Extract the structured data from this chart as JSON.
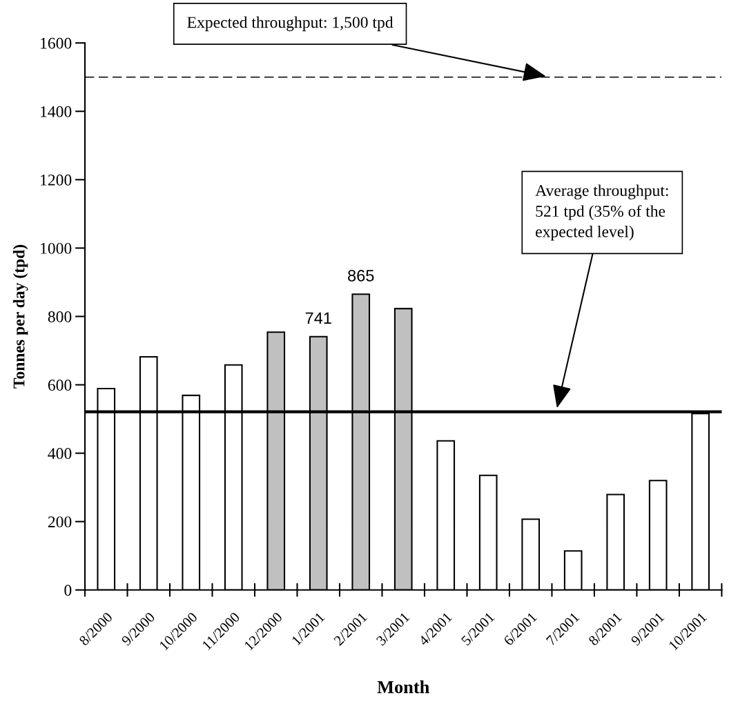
{
  "chart_data": {
    "type": "bar",
    "xlabel": "Month",
    "ylabel": "Tonnes per day (tpd)",
    "categories": [
      "8/2000",
      "9/2000",
      "10/2000",
      "11/2000",
      "12/2000",
      "1/2001",
      "2/2001",
      "3/2001",
      "4/2001",
      "5/2001",
      "6/2001",
      "7/2001",
      "8/2001",
      "9/2001",
      "10/2001"
    ],
    "values": [
      589,
      682,
      569,
      658,
      754,
      741,
      865,
      823,
      436,
      335,
      207,
      114,
      279,
      320,
      516
    ],
    "colors": [
      "#ffffff",
      "#ffffff",
      "#ffffff",
      "#ffffff",
      "#c0c0c0",
      "#c0c0c0",
      "#c0c0c0",
      "#c0c0c0",
      "#ffffff",
      "#ffffff",
      "#ffffff",
      "#ffffff",
      "#ffffff",
      "#ffffff",
      "#ffffff"
    ],
    "value_labels": [
      null,
      null,
      null,
      null,
      null,
      "741",
      "865",
      null,
      null,
      null,
      null,
      null,
      null,
      null,
      null
    ],
    "ylim": [
      0,
      1600
    ],
    "yticks": [
      0,
      200,
      400,
      600,
      800,
      1000,
      1200,
      1400,
      1600
    ],
    "ref_lines": [
      {
        "axis": "y",
        "value": 1500,
        "label": "Expected throughput: 1,500 tpd",
        "color": "#000000",
        "line_style": "dashed"
      },
      {
        "axis": "y",
        "value": 521,
        "label": "Average throughput:\n521 tpd (35% of the\nexpected level)",
        "color": "#000000",
        "line_style": "solid"
      }
    ],
    "grid": false
  }
}
